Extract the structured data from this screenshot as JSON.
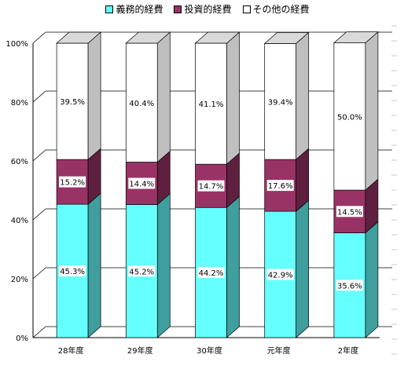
{
  "chart_data": {
    "type": "bar",
    "stacked": true,
    "percent": true,
    "categories": [
      "28年度",
      "29年度",
      "30年度",
      "元年度",
      "2年度"
    ],
    "series": [
      {
        "name": "義務的経費",
        "values": [
          45.3,
          45.2,
          44.2,
          42.9,
          35.6
        ],
        "labels": [
          "45.3%",
          "45.2%",
          "44.2%",
          "42.9%",
          "35.6%"
        ],
        "color": "#66ffff"
      },
      {
        "name": "投資的経費",
        "values": [
          15.2,
          14.4,
          14.7,
          17.6,
          14.5
        ],
        "labels": [
          "15.2%",
          "14.4%",
          "14.7%",
          "17.6%",
          "14.5%"
        ],
        "color": "#993366"
      },
      {
        "name": "その他の経費",
        "values": [
          39.5,
          40.4,
          41.1,
          39.4,
          50.0
        ],
        "labels": [
          "39.5%",
          "40.4%",
          "41.1%",
          "39.4%",
          "50.0%"
        ],
        "color": "#ffffff"
      }
    ],
    "ylim": [
      0,
      100
    ],
    "yticks": [
      "0%",
      "20%",
      "40%",
      "60%",
      "80%",
      "100%"
    ],
    "grid": true,
    "legend": "top"
  }
}
